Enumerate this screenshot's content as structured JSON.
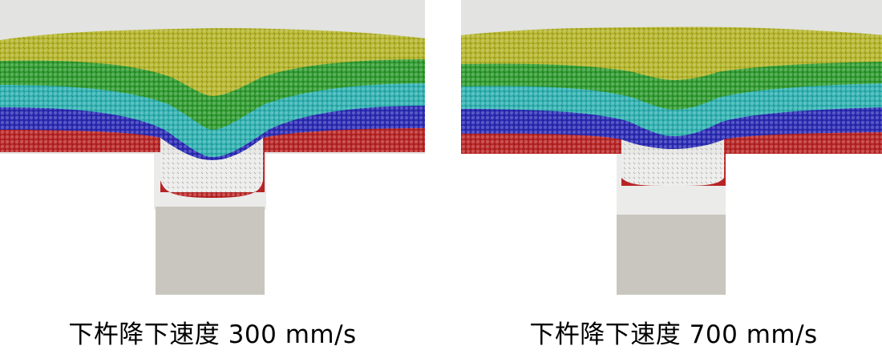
{
  "panels": [
    {
      "id": "left",
      "caption": "下杵降下速度 300 mm/s",
      "colors": {
        "yellow": "#b4b42a",
        "green": "#2e9a2e",
        "cyan": "#2fb0b0",
        "blue": "#2a2ab4",
        "red": "#b82424",
        "punch": "#c8c6be",
        "die": "#ebebea",
        "wall": "#e3e3e1"
      }
    },
    {
      "id": "right",
      "caption": "下杵降下速度 700 mm/s",
      "colors": {
        "yellow": "#b4b42a",
        "green": "#2e9a2e",
        "cyan": "#2fb0b0",
        "blue": "#2a2ab4",
        "red": "#b82424",
        "punch": "#c8c6be",
        "die": "#ebebea",
        "wall": "#e3e3e1"
      }
    }
  ]
}
